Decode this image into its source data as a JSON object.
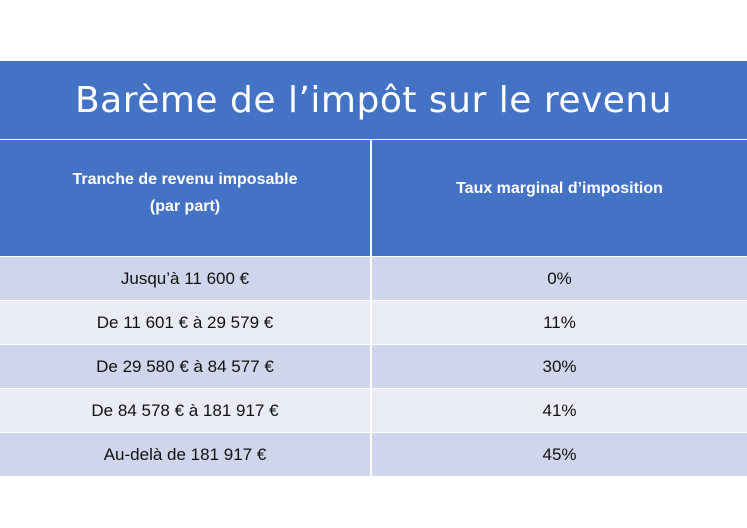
{
  "title": "Barème de l’impôt sur le revenu",
  "table": {
    "headers": {
      "col1_line1": "Tranche de revenu imposable",
      "col1_line2": "(par part)",
      "col2": "Taux marginal d’imposition"
    },
    "rows": [
      {
        "tranche": "Jusqu’à 11 600 €",
        "taux": "0%"
      },
      {
        "tranche": "De 11 601 € à 29 579 €",
        "taux": "11%"
      },
      {
        "tranche": "De 29 580 € à 84 577 €",
        "taux": "30%"
      },
      {
        "tranche": "De 84 578 € à 181 917 €",
        "taux": "41%"
      },
      {
        "tranche": "Au-delà de 181 917 €",
        "taux": "45%"
      }
    ]
  },
  "colors": {
    "accent": "#4472c4",
    "row_dark": "#cfd5ea",
    "row_light": "#e9ebf5"
  }
}
